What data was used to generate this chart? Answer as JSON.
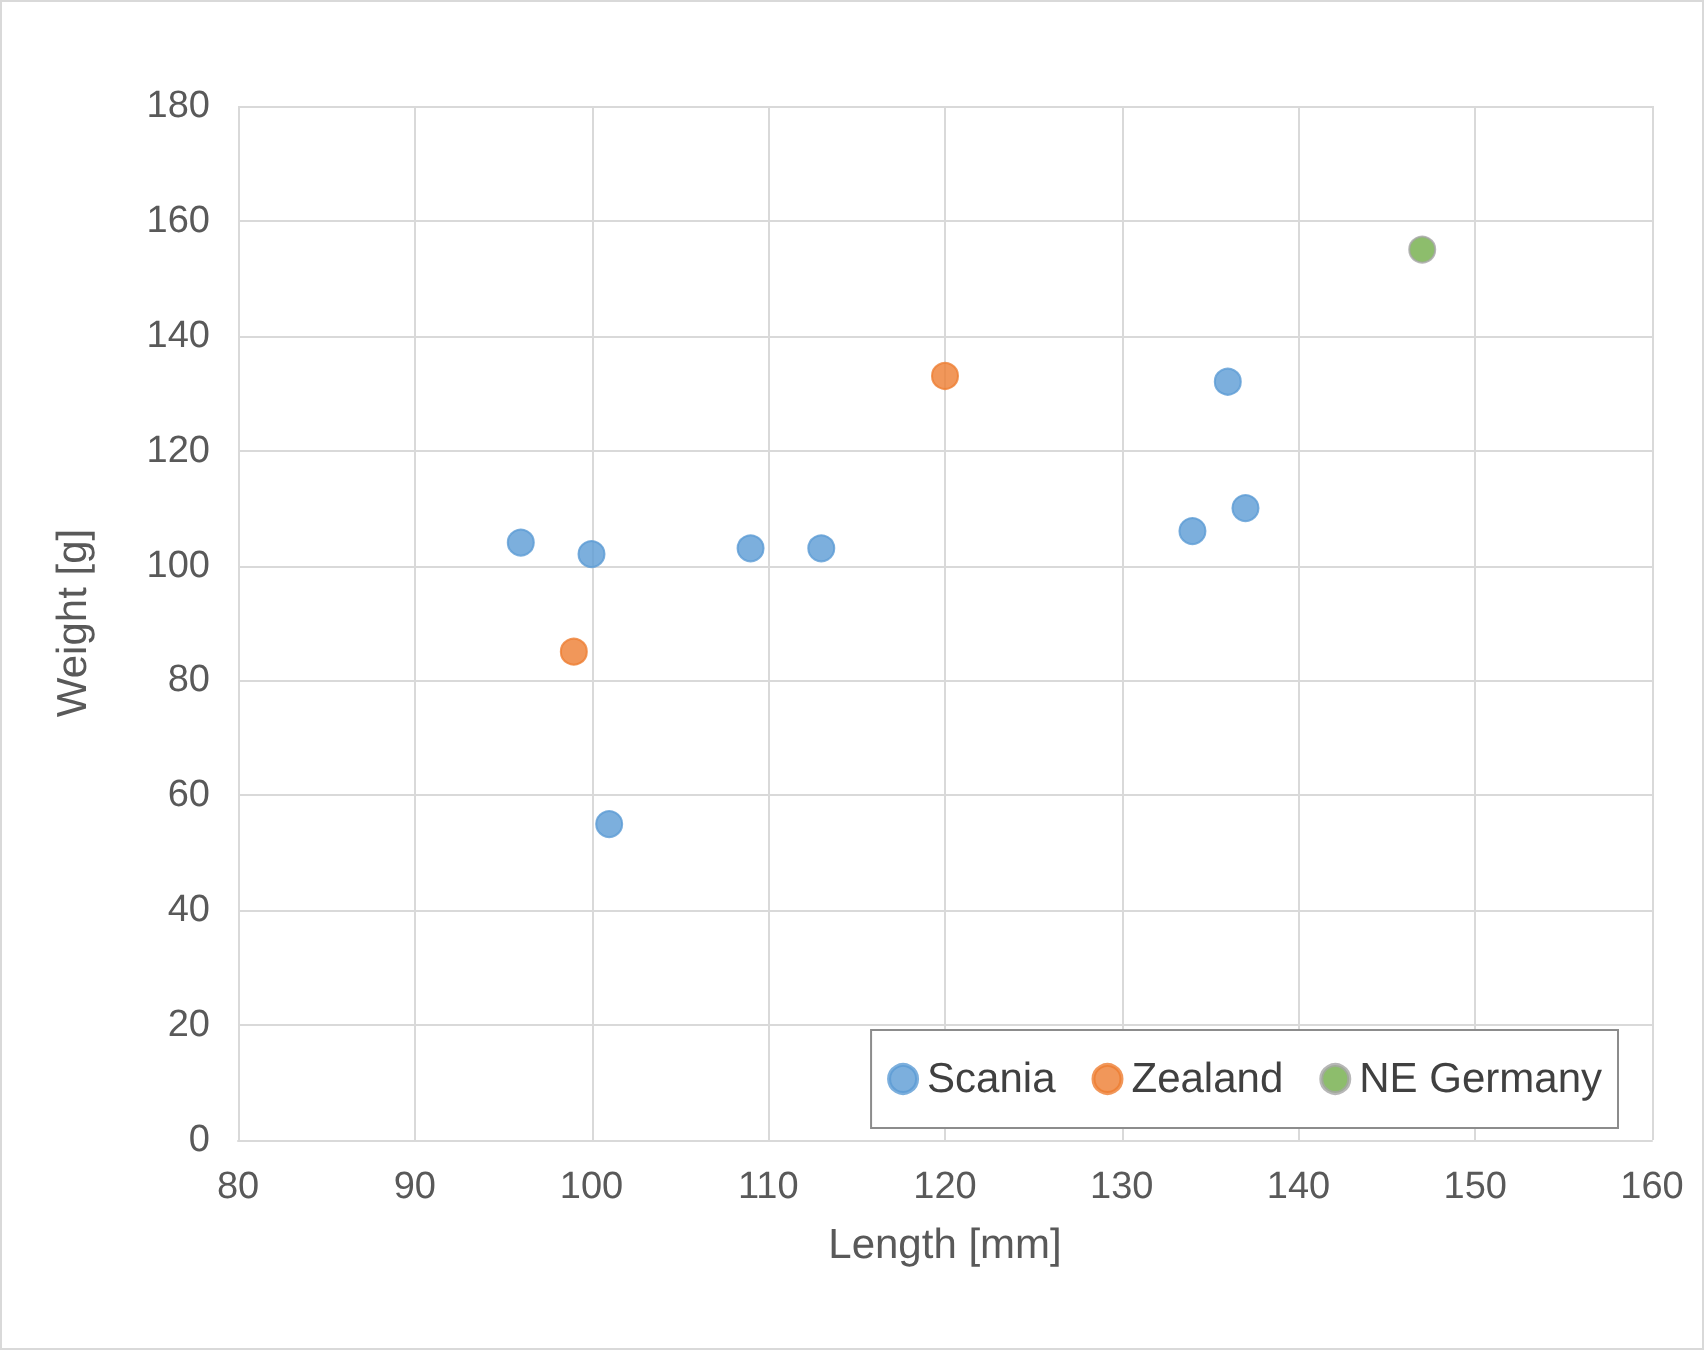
{
  "chart_data": {
    "type": "scatter",
    "xlabel": "Length [mm]",
    "ylabel": "Weight [g]",
    "xlim": [
      80,
      160
    ],
    "xticks": [
      80,
      90,
      100,
      110,
      120,
      130,
      140,
      150,
      160
    ],
    "ylim": [
      0,
      180
    ],
    "yticks": [
      0,
      20,
      40,
      60,
      80,
      100,
      120,
      140,
      160,
      180
    ],
    "grid": true,
    "legend": "bottom right",
    "marker": "circle",
    "series": [
      {
        "name": "Scania",
        "color": "#5b9bd5",
        "x": [
          96,
          100,
          101,
          109,
          113,
          134,
          136,
          137
        ],
        "values": [
          104,
          102,
          55,
          103,
          103,
          106,
          132,
          110
        ]
      },
      {
        "name": "Zealand",
        "color": "#ed7d31",
        "x": [
          99,
          120
        ],
        "values": [
          85,
          133
        ]
      },
      {
        "name": "NE Germany",
        "color": "#70ad47",
        "x": [
          147
        ],
        "values": [
          155
        ]
      }
    ]
  }
}
